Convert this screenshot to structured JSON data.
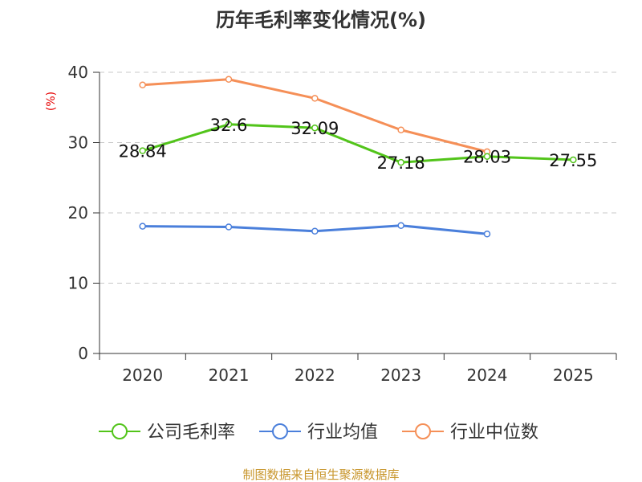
{
  "chart_data": {
    "type": "line",
    "title": "历年毛利率变化情况(%)",
    "ylabel": "(%)",
    "xlabel": "",
    "ylim": [
      0,
      40
    ],
    "yticks": [
      0,
      10,
      20,
      30,
      40
    ],
    "grid": true,
    "categories": [
      "2020",
      "2021",
      "2022",
      "2023",
      "2024",
      "2025"
    ],
    "series": [
      {
        "name": "公司毛利率",
        "color": "#52c41a",
        "values": [
          28.84,
          32.6,
          32.09,
          27.18,
          28.03,
          27.55
        ],
        "labels": [
          "28.84",
          "32.6",
          "32.09",
          "27.18",
          "28.03",
          "27.55"
        ]
      },
      {
        "name": "行业均值",
        "color": "#4a7fdb",
        "values": [
          18.1,
          18.0,
          17.4,
          18.2,
          17.0,
          null
        ]
      },
      {
        "name": "行业中位数",
        "color": "#f58f57",
        "values": [
          38.2,
          39.0,
          36.3,
          31.8,
          28.7,
          null
        ]
      }
    ],
    "legend_position": "bottom",
    "source": "制图数据来自恒生聚源数据库"
  }
}
